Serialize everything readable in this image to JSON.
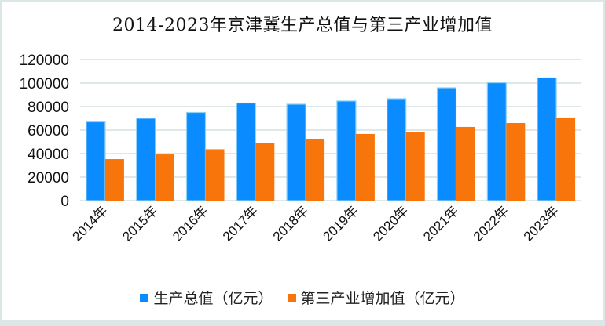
{
  "chart_data": {
    "type": "bar",
    "title": "2014-2023年京津冀生产总值与第三产业增加值",
    "xlabel": "",
    "ylabel": "",
    "categories": [
      "2014年",
      "2015年",
      "2016年",
      "2017年",
      "2018年",
      "2019年",
      "2020年",
      "2021年",
      "2022年",
      "2023年"
    ],
    "series": [
      {
        "name": "生产总值（亿元）",
        "color": "#0a8bff",
        "values": [
          67000,
          70000,
          75000,
          83000,
          82000,
          84700,
          86700,
          96000,
          100300,
          104400
        ]
      },
      {
        "name": "第三产业增加值（亿元）",
        "color": "#f7750a",
        "values": [
          35300,
          39300,
          43700,
          48700,
          52000,
          56700,
          58000,
          62700,
          66000,
          70700
        ]
      }
    ],
    "ylim": [
      0,
      120000
    ],
    "yticks": [
      "0",
      "20000",
      "40000",
      "60000",
      "80000",
      "100000",
      "120000"
    ],
    "grid": true,
    "legend": "bottom"
  }
}
